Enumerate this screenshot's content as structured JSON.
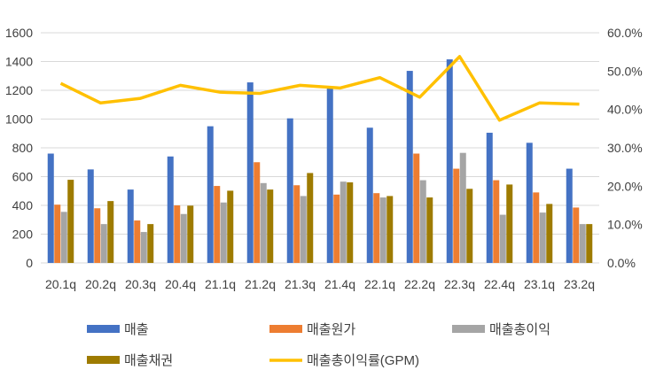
{
  "chart_data": {
    "type": "bar+line",
    "categories": [
      "20.1q",
      "20.2q",
      "20.3q",
      "20.4q",
      "21.1q",
      "21.2q",
      "21.3q",
      "21.4q",
      "22.1q",
      "22.2q",
      "22.3q",
      "22.4q",
      "23.1q",
      "23.2q"
    ],
    "series": [
      {
        "name": "매출",
        "type": "bar",
        "axis": "left",
        "color": "#4472C4",
        "values": [
          760,
          650,
          510,
          740,
          950,
          1255,
          1005,
          1225,
          940,
          1335,
          1415,
          905,
          835,
          655
        ]
      },
      {
        "name": "매출원가",
        "type": "bar",
        "axis": "left",
        "color": "#ED7D31",
        "values": [
          405,
          380,
          295,
          400,
          535,
          700,
          540,
          475,
          485,
          760,
          655,
          575,
          490,
          385
        ]
      },
      {
        "name": "매출총이익",
        "type": "bar",
        "axis": "left",
        "color": "#A5A5A5",
        "values": [
          355,
          270,
          215,
          340,
          420,
          555,
          465,
          565,
          455,
          575,
          765,
          335,
          350,
          270
        ]
      },
      {
        "name": "매출채권",
        "type": "bar",
        "axis": "left",
        "color": "#9E7B00",
        "values": [
          578,
          430,
          270,
          398,
          502,
          510,
          625,
          560,
          465,
          455,
          515,
          545,
          410,
          270
        ]
      },
      {
        "name": "매출총이익률(GPM)",
        "type": "line",
        "axis": "right",
        "color": "#FFC000",
        "values": [
          0.468,
          0.417,
          0.429,
          0.463,
          0.445,
          0.442,
          0.463,
          0.456,
          0.483,
          0.432,
          0.538,
          0.372,
          0.417,
          0.414
        ]
      }
    ],
    "y_left": {
      "min": 0,
      "max": 1600,
      "ticks": [
        "0",
        "200",
        "400",
        "600",
        "800",
        "1000",
        "1200",
        "1400",
        "1600"
      ]
    },
    "y_right": {
      "min": 0,
      "max": 0.6,
      "ticks": [
        "0.0%",
        "10.0%",
        "20.0%",
        "30.0%",
        "40.0%",
        "50.0%",
        "60.0%"
      ]
    },
    "grid": true,
    "legend_position": "bottom"
  }
}
